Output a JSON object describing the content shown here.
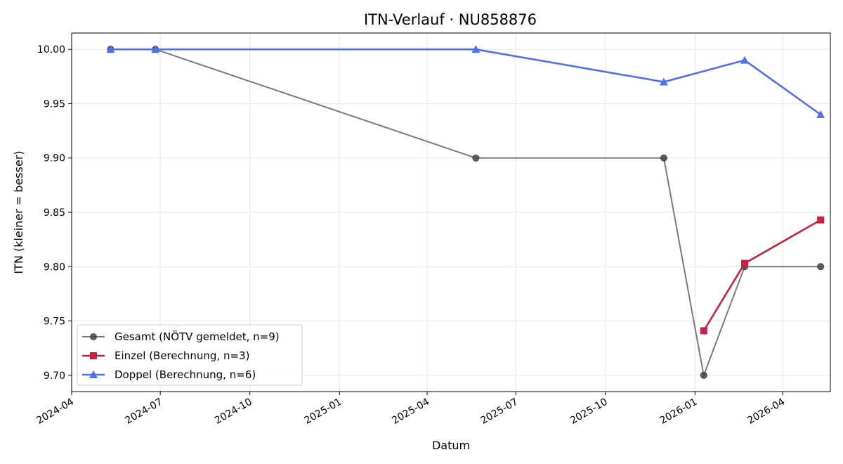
{
  "chart_data": {
    "type": "line",
    "title": "ITN-Verlauf · NU858876",
    "xlabel": "Datum",
    "ylabel": "ITN  (kleiner = besser)",
    "x_ticks": [
      "2024-04",
      "2024-07",
      "2024-10",
      "2025-01",
      "2025-04",
      "2025-07",
      "2025-10",
      "2026-01",
      "2026-04"
    ],
    "y_ticks": [
      "9.70",
      "9.75",
      "9.80",
      "9.85",
      "9.90",
      "9.95",
      "10.00"
    ],
    "xlim": [
      "2024-04-01",
      "2026-05-20"
    ],
    "ylim": [
      9.685,
      10.015
    ],
    "grid": true,
    "legend_position": "lower-left",
    "series": [
      {
        "name": "Gesamt (NÖTV gemeldet, n=9)",
        "color": "#555555",
        "marker": "circle",
        "points": [
          {
            "x": "2024-05-11",
            "y": 10.0
          },
          {
            "x": "2024-06-26",
            "y": 10.0
          },
          {
            "x": "2025-05-21",
            "y": 9.9
          },
          {
            "x": "2025-11-30",
            "y": 9.9
          },
          {
            "x": "2026-01-10",
            "y": 9.7
          },
          {
            "x": "2026-02-21",
            "y": 9.8
          },
          {
            "x": "2026-05-10",
            "y": 9.8
          }
        ]
      },
      {
        "name": "Einzel (Berechnung, n=3)",
        "color": "#c8203e",
        "marker": "square",
        "points": [
          {
            "x": "2026-01-10",
            "y": 9.741
          },
          {
            "x": "2026-02-21",
            "y": 9.803
          },
          {
            "x": "2026-05-10",
            "y": 9.843
          }
        ]
      },
      {
        "name": "Doppel (Berechnung, n=6)",
        "color": "#4e6ff0",
        "marker": "triangle",
        "points": [
          {
            "x": "2024-05-11",
            "y": 10.0
          },
          {
            "x": "2024-06-26",
            "y": 10.0
          },
          {
            "x": "2025-05-21",
            "y": 10.0
          },
          {
            "x": "2025-11-30",
            "y": 9.97
          },
          {
            "x": "2026-02-21",
            "y": 9.99
          },
          {
            "x": "2026-05-10",
            "y": 9.94
          }
        ]
      }
    ]
  }
}
